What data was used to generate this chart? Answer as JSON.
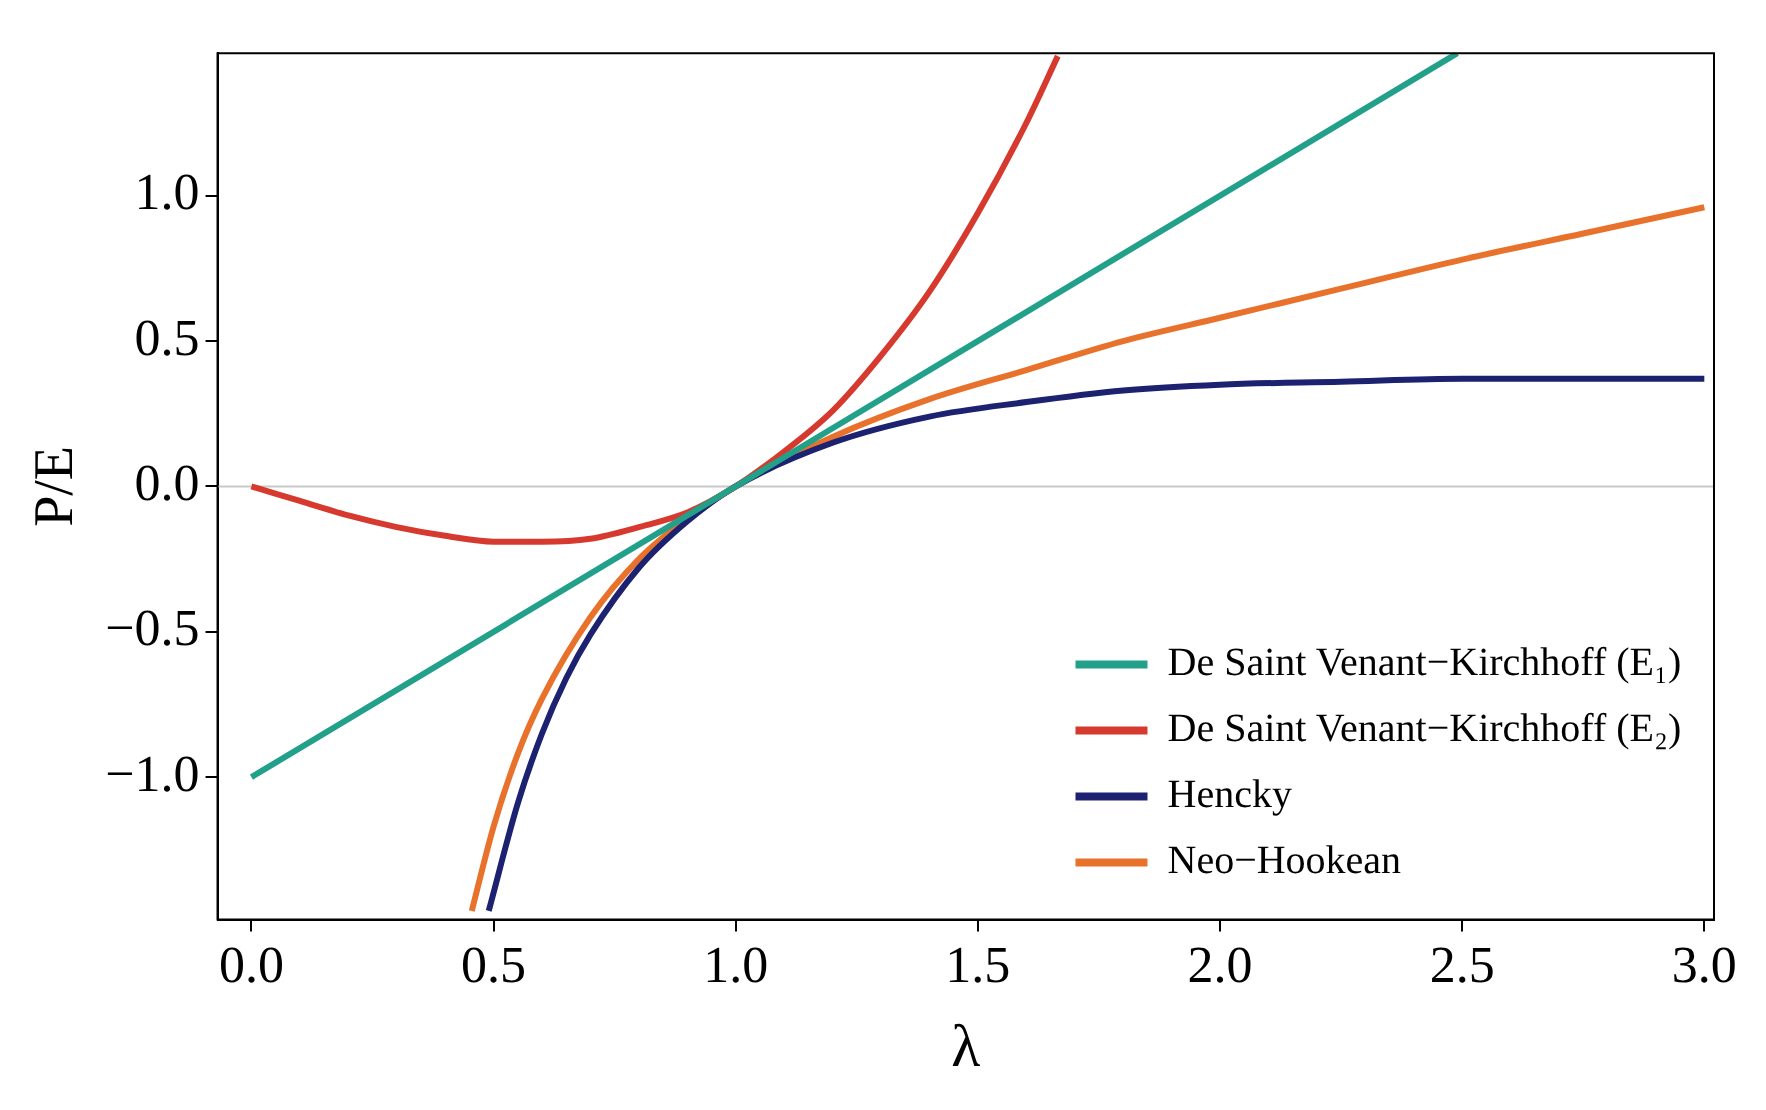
{
  "chart_data": {
    "type": "line",
    "xlabel": "λ",
    "ylabel": "P/E",
    "xlim": [
      -0.07,
      3.02
    ],
    "xticks": [
      {
        "value": 0,
        "label": "0.0"
      },
      {
        "value": 0.5,
        "label": "0.5"
      },
      {
        "value": 1,
        "label": "1.0"
      },
      {
        "value": 1.5,
        "label": "1.5"
      },
      {
        "value": 2,
        "label": "2.0"
      },
      {
        "value": 2.5,
        "label": "2.5"
      },
      {
        "value": 3,
        "label": "3.0"
      }
    ],
    "ylim": [
      -1.49,
      1.49
    ],
    "yticks": [
      {
        "value": -1,
        "label": "−1.0"
      },
      {
        "value": -0.5,
        "label": "−0.5"
      },
      {
        "value": 0,
        "label": "0.0"
      },
      {
        "value": 0.5,
        "label": "0.5"
      },
      {
        "value": 1,
        "label": "1.0"
      }
    ],
    "grid": false,
    "legend": "bottom right",
    "marker": "none",
    "line_style": "solid",
    "ref_lines": [
      {
        "axis": "y",
        "value": 0,
        "color": "#c8c8c8"
      }
    ],
    "series": [
      {
        "name": "De Saint Venant−Kirchhoff (E₁)",
        "color": "#22a08a",
        "x": [
          0,
          2.49
        ],
        "values": [
          -1,
          1.49
        ]
      },
      {
        "name": "De Saint Venant−Kirchhoff (E₂)",
        "color": "#d63a2e",
        "x": [
          0,
          0.1,
          0.2,
          0.3,
          0.4,
          0.5,
          0.6,
          0.7,
          0.8,
          0.9,
          1,
          1.1,
          1.2,
          1.3,
          1.4,
          1.5,
          1.6,
          1.665
        ],
        "values": [
          0,
          -0.05,
          -0.1,
          -0.14,
          -0.17,
          -0.19,
          -0.19,
          -0.18,
          -0.14,
          -0.09,
          0,
          0.12,
          0.26,
          0.45,
          0.67,
          0.94,
          1.25,
          1.48
        ]
      },
      {
        "name": "Hencky",
        "color": "#1c2270",
        "x": [
          0.49,
          0.55,
          0.6,
          0.65,
          0.7,
          0.8,
          0.9,
          1,
          1.2,
          1.4,
          1.6,
          1.8,
          2,
          2.25,
          2.5,
          2.75,
          3
        ],
        "values": [
          -1.46,
          -1.09,
          -0.85,
          -0.66,
          -0.51,
          -0.28,
          -0.12,
          0,
          0.15,
          0.24,
          0.29,
          0.33,
          0.35,
          0.36,
          0.37,
          0.37,
          0.37
        ]
      },
      {
        "name": "Neo−Hookean",
        "color": "#e8722c",
        "x": [
          0.455,
          0.5,
          0.55,
          0.6,
          0.7,
          0.8,
          0.9,
          1,
          1.2,
          1.4,
          1.6,
          1.8,
          2,
          2.25,
          2.5,
          2.75,
          3
        ],
        "values": [
          -1.46,
          -1.17,
          -0.92,
          -0.73,
          -0.45,
          -0.25,
          -0.11,
          0,
          0.17,
          0.3,
          0.4,
          0.5,
          0.58,
          0.68,
          0.78,
          0.87,
          0.96
        ]
      }
    ]
  }
}
